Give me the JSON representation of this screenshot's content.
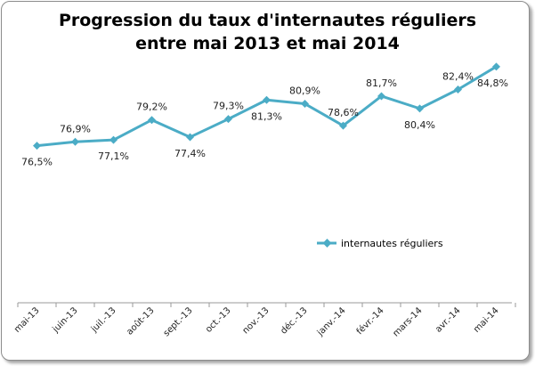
{
  "chart_data": {
    "type": "line",
    "title_line1": "Progression du taux d'internautes réguliers",
    "title_line2": "entre mai 2013 et mai 2014",
    "xlabel": "",
    "ylabel": "",
    "categories": [
      "mai-13",
      "juin-13",
      "juil.-13",
      "août-13",
      "sept.-13",
      "oct.-13",
      "nov.-13",
      "déc.-13",
      "janv.-14",
      "févr.-14",
      "mars-14",
      "avr.-14",
      "mai-14"
    ],
    "series": [
      {
        "name": "internautes réguliers",
        "color": "#4bacc6",
        "values": [
          76.5,
          76.9,
          77.1,
          79.2,
          77.4,
          79.3,
          81.3,
          80.9,
          78.6,
          81.7,
          80.4,
          82.4,
          84.8
        ],
        "labels": [
          "76,5%",
          "76,9%",
          "77,1%",
          "79,2%",
          "77,4%",
          "79,3%",
          "81,3%",
          "80,9%",
          "78,6%",
          "81,7%",
          "80,4%",
          "82,4%",
          "84,8%"
        ]
      }
    ],
    "label_positions": [
      "below",
      "above",
      "below",
      "above",
      "below",
      "above",
      "below",
      "above",
      "above",
      "above",
      "below",
      "above",
      "below"
    ],
    "ylim": [
      60,
      86
    ],
    "grid": false,
    "legend_position": "center-right"
  }
}
